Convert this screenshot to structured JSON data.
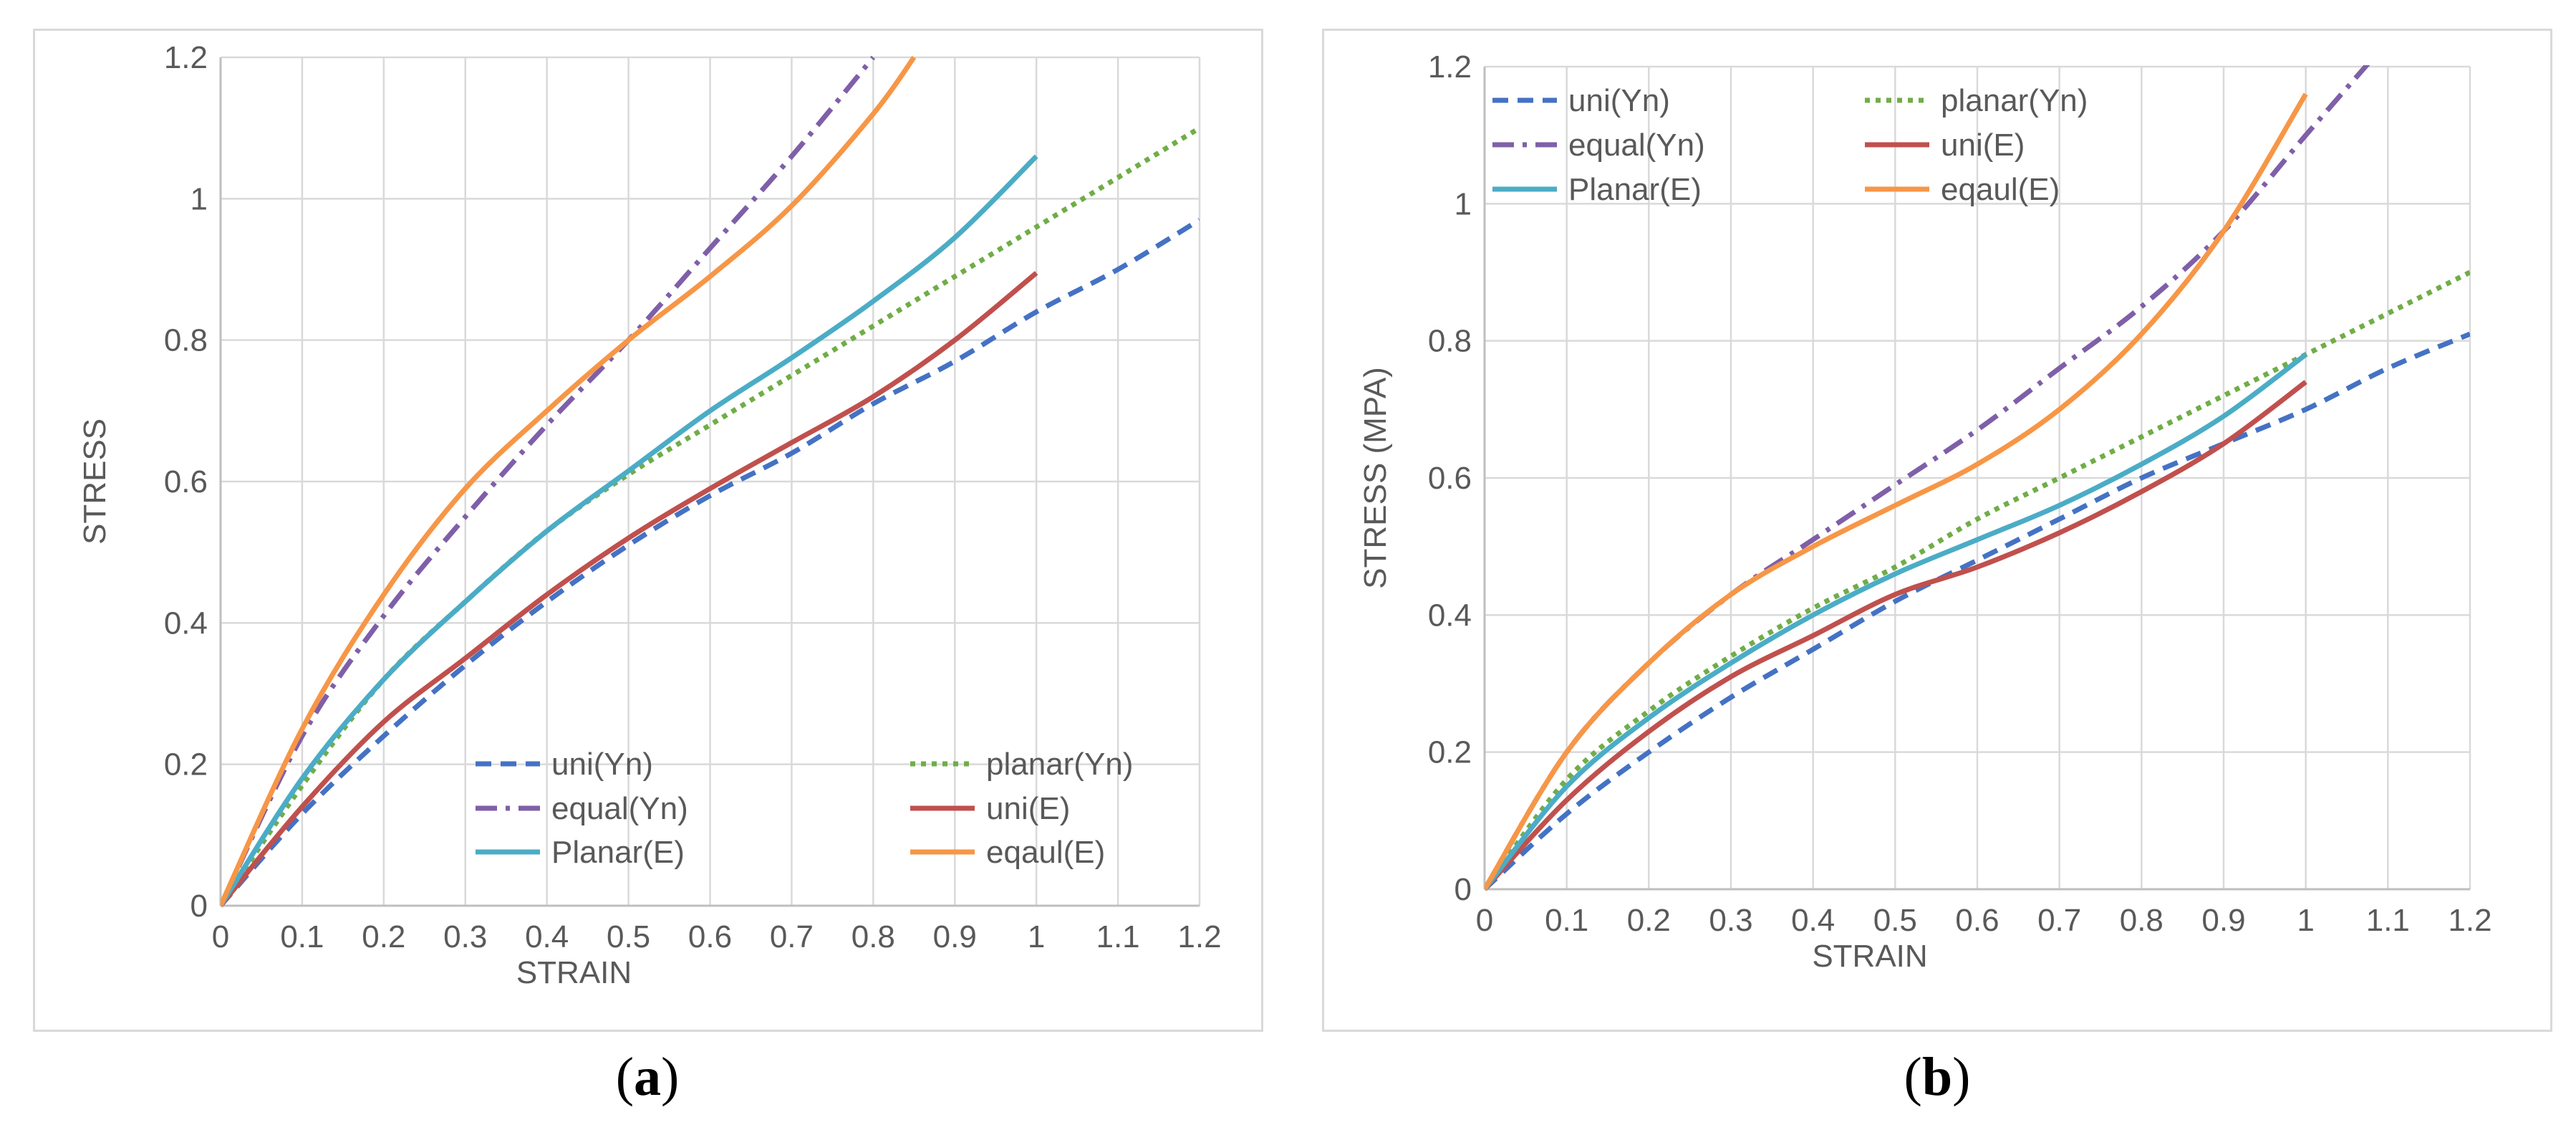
{
  "chart_data": [
    {
      "type": "line",
      "panel": "a",
      "caption_letter": "a",
      "xlabel": "STRAIN",
      "ylabel": "STRESS",
      "xlim": [
        0,
        1.2
      ],
      "ylim": [
        0,
        1.2
      ],
      "xticks": [
        0,
        0.1,
        0.2,
        0.3,
        0.4,
        0.5,
        0.6,
        0.7,
        0.8,
        0.9,
        1,
        1.1,
        1.2
      ],
      "yticks": [
        0,
        0.2,
        0.4,
        0.6,
        0.8,
        1,
        1.2
      ],
      "xtick_labels": [
        "0",
        "0.1",
        "0.2",
        "0.3",
        "0.4",
        "0.5",
        "0.6",
        "0.7",
        "0.8",
        "0.9",
        "1",
        "1.1",
        "1.2"
      ],
      "ytick_labels": [
        "0",
        "0.2",
        "0.4",
        "0.6",
        "0.8",
        "1",
        "1.2"
      ],
      "grid": true,
      "legend_position": "bottom-right",
      "series": [
        {
          "name": "uni(Yn)",
          "color": "#4472c4",
          "dash": "dashed",
          "x": [
            0,
            0.1,
            0.2,
            0.3,
            0.4,
            0.5,
            0.6,
            0.7,
            0.8,
            0.9,
            1.0,
            1.1,
            1.2
          ],
          "y": [
            0,
            0.13,
            0.24,
            0.34,
            0.43,
            0.51,
            0.58,
            0.64,
            0.71,
            0.77,
            0.84,
            0.9,
            0.97
          ]
        },
        {
          "name": "planar(Yn)",
          "color": "#70ad47",
          "dash": "dotted",
          "x": [
            0,
            0.1,
            0.2,
            0.3,
            0.4,
            0.5,
            0.6,
            0.7,
            0.8,
            0.9,
            1.0,
            1.1,
            1.2
          ],
          "y": [
            0,
            0.17,
            0.32,
            0.43,
            0.53,
            0.61,
            0.68,
            0.75,
            0.82,
            0.89,
            0.96,
            1.03,
            1.1
          ]
        },
        {
          "name": "equal(Yn)",
          "color": "#7f5fa8",
          "dash": "dashdot",
          "x": [
            0,
            0.1,
            0.2,
            0.3,
            0.4,
            0.5,
            0.6,
            0.7,
            0.8
          ],
          "y": [
            0,
            0.24,
            0.41,
            0.55,
            0.68,
            0.8,
            0.93,
            1.06,
            1.2
          ]
        },
        {
          "name": "uni(E)",
          "color": "#c0504d",
          "dash": "solid",
          "x": [
            0,
            0.1,
            0.2,
            0.3,
            0.4,
            0.5,
            0.6,
            0.7,
            0.8,
            0.9,
            1.0
          ],
          "y": [
            0,
            0.14,
            0.26,
            0.35,
            0.44,
            0.52,
            0.59,
            0.655,
            0.72,
            0.8,
            0.895
          ]
        },
        {
          "name": "Planar(E)",
          "color": "#4bacc6",
          "dash": "solid",
          "x": [
            0,
            0.1,
            0.2,
            0.3,
            0.4,
            0.5,
            0.6,
            0.7,
            0.8,
            0.9,
            1.0
          ],
          "y": [
            0,
            0.18,
            0.32,
            0.43,
            0.53,
            0.615,
            0.7,
            0.775,
            0.855,
            0.945,
            1.06
          ]
        },
        {
          "name": "eqaul(E)",
          "color": "#f79646",
          "dash": "solid",
          "x": [
            0,
            0.1,
            0.2,
            0.3,
            0.4,
            0.5,
            0.6,
            0.7,
            0.8,
            0.85
          ],
          "y": [
            0,
            0.25,
            0.44,
            0.59,
            0.7,
            0.8,
            0.89,
            0.99,
            1.12,
            1.2
          ]
        }
      ]
    },
    {
      "type": "line",
      "panel": "b",
      "caption_letter": "b",
      "xlabel": "STRAIN",
      "ylabel": "STRESS (MPA)",
      "xlim": [
        0,
        1.2
      ],
      "ylim": [
        0,
        1.2
      ],
      "xticks": [
        0,
        0.1,
        0.2,
        0.3,
        0.4,
        0.5,
        0.6,
        0.7,
        0.8,
        0.9,
        1,
        1.1,
        1.2
      ],
      "yticks": [
        0,
        0.2,
        0.4,
        0.6,
        0.8,
        1,
        1.2
      ],
      "xtick_labels": [
        "0",
        "0.1",
        "0.2",
        "0.3",
        "0.4",
        "0.5",
        "0.6",
        "0.7",
        "0.8",
        "0.9",
        "1",
        "1.1",
        "1.2"
      ],
      "ytick_labels": [
        "0",
        "0.2",
        "0.4",
        "0.6",
        "0.8",
        "1",
        "1.2"
      ],
      "grid": true,
      "legend_position": "top-left",
      "series": [
        {
          "name": "uni(Yn)",
          "color": "#4472c4",
          "dash": "dashed",
          "x": [
            0,
            0.1,
            0.2,
            0.3,
            0.4,
            0.5,
            0.6,
            0.7,
            0.8,
            0.9,
            1.0,
            1.1,
            1.2
          ],
          "y": [
            0,
            0.11,
            0.2,
            0.28,
            0.35,
            0.42,
            0.48,
            0.54,
            0.6,
            0.65,
            0.7,
            0.76,
            0.81
          ]
        },
        {
          "name": "planar(Yn)",
          "color": "#70ad47",
          "dash": "dotted",
          "x": [
            0,
            0.1,
            0.2,
            0.3,
            0.4,
            0.5,
            0.6,
            0.7,
            0.8,
            0.9,
            1.0,
            1.1,
            1.2
          ],
          "y": [
            0,
            0.16,
            0.26,
            0.34,
            0.41,
            0.47,
            0.54,
            0.6,
            0.66,
            0.72,
            0.78,
            0.84,
            0.9
          ]
        },
        {
          "name": "equal(Yn)",
          "color": "#7f5fa8",
          "dash": "dashdot",
          "x": [
            0,
            0.1,
            0.2,
            0.3,
            0.4,
            0.5,
            0.6,
            0.7,
            0.8,
            0.9,
            1.0,
            1.08
          ],
          "y": [
            0,
            0.2,
            0.33,
            0.43,
            0.51,
            0.59,
            0.67,
            0.76,
            0.85,
            0.96,
            1.1,
            1.21
          ]
        },
        {
          "name": "uni(E)",
          "color": "#c0504d",
          "dash": "solid",
          "x": [
            0,
            0.1,
            0.2,
            0.3,
            0.4,
            0.5,
            0.6,
            0.7,
            0.8,
            0.9,
            1.0
          ],
          "y": [
            0,
            0.13,
            0.23,
            0.31,
            0.37,
            0.43,
            0.47,
            0.52,
            0.58,
            0.65,
            0.74
          ]
        },
        {
          "name": "Planar(E)",
          "color": "#4bacc6",
          "dash": "solid",
          "x": [
            0,
            0.1,
            0.2,
            0.3,
            0.4,
            0.5,
            0.6,
            0.7,
            0.8,
            0.9,
            1.0
          ],
          "y": [
            0,
            0.15,
            0.25,
            0.33,
            0.4,
            0.46,
            0.51,
            0.56,
            0.62,
            0.69,
            0.78
          ]
        },
        {
          "name": "eqaul(E)",
          "color": "#f79646",
          "dash": "solid",
          "x": [
            0,
            0.1,
            0.2,
            0.3,
            0.4,
            0.5,
            0.6,
            0.7,
            0.8,
            0.9,
            1.0
          ],
          "y": [
            0,
            0.2,
            0.33,
            0.43,
            0.5,
            0.56,
            0.62,
            0.7,
            0.81,
            0.96,
            1.16
          ]
        }
      ]
    }
  ]
}
